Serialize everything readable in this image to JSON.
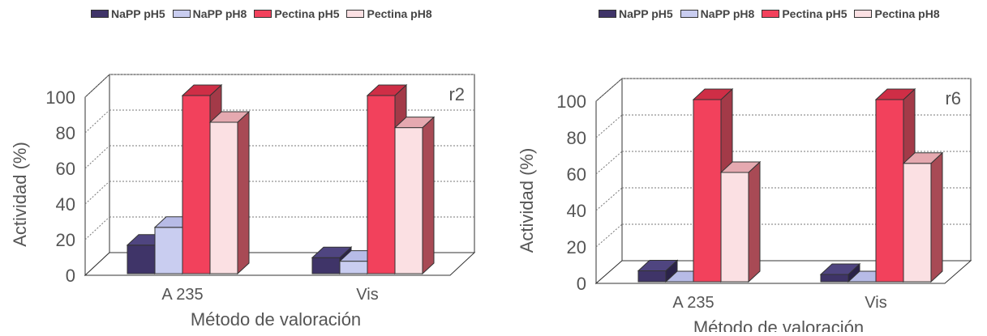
{
  "chart_data": [
    {
      "type": "bar",
      "title": "r2",
      "xlabel": "Método de valoración",
      "ylabel": "Actividad (%)",
      "categories": [
        "A 235",
        "Vis"
      ],
      "ylim": [
        0,
        100
      ],
      "yticks": [
        "0",
        "20",
        "40",
        "60",
        "80",
        "100"
      ],
      "series": [
        {
          "name": "NaPP pH5",
          "values": [
            16,
            9
          ]
        },
        {
          "name": "NaPP pH8",
          "values": [
            26,
            7
          ]
        },
        {
          "name": "Pectina pH5",
          "values": [
            100,
            100
          ]
        },
        {
          "name": "Pectina pH8",
          "values": [
            85,
            82
          ]
        }
      ],
      "grid": true,
      "legend": "top"
    },
    {
      "type": "bar",
      "title": "r6",
      "xlabel": "Método de valoración",
      "ylabel": "Actividad (%)",
      "categories": [
        "A 235",
        "Vis"
      ],
      "ylim": [
        0,
        100
      ],
      "yticks": [
        "0",
        "20",
        "40",
        "60",
        "80",
        "100"
      ],
      "series": [
        {
          "name": "NaPP pH5",
          "values": [
            6,
            4
          ]
        },
        {
          "name": "NaPP pH8",
          "values": [
            0,
            0
          ]
        },
        {
          "name": "Pectina pH5",
          "values": [
            100,
            100
          ]
        },
        {
          "name": "Pectina pH8",
          "values": [
            60,
            65
          ]
        }
      ],
      "grid": true,
      "legend": "top"
    }
  ],
  "series_colors": {
    "NaPP pH5": {
      "front": "#3f3468",
      "side": "#2a2248",
      "top": "#4f4580"
    },
    "NaPP pH8": {
      "front": "#c9cdf0",
      "side": "#8e92c6",
      "top": "#b7bbe6"
    },
    "Pectina pH5": {
      "front": "#f2415c",
      "side": "#a33a48",
      "top": "#cf2e46"
    },
    "Pectina pH8": {
      "front": "#fbe0e3",
      "side": "#a84a55",
      "top": "#e5a9b0"
    }
  }
}
